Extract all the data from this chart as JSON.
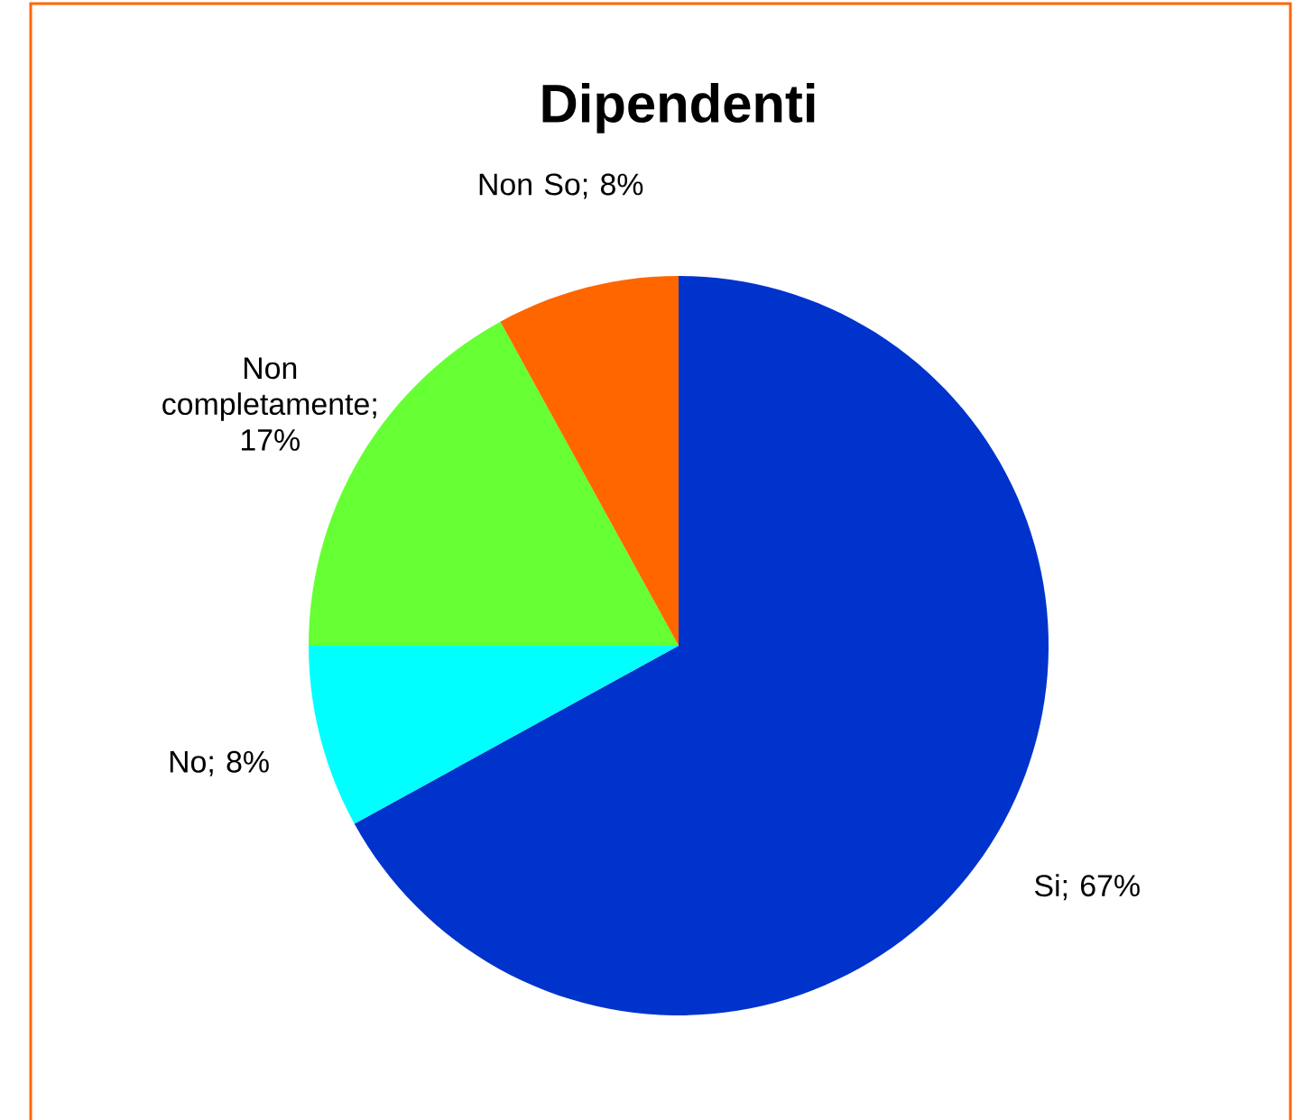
{
  "chart_data": {
    "type": "pie",
    "title": "Dipendenti",
    "categories": [
      "Si",
      "No",
      "Non completamente",
      "Non So"
    ],
    "values": [
      67,
      8,
      17,
      8
    ],
    "value_labels": [
      "; 67%",
      "; 8%",
      "; 17%",
      "; 8%"
    ],
    "colors": [
      "#0033cc",
      "#00ffff",
      "#66ff33",
      "#ff6600"
    ]
  }
}
